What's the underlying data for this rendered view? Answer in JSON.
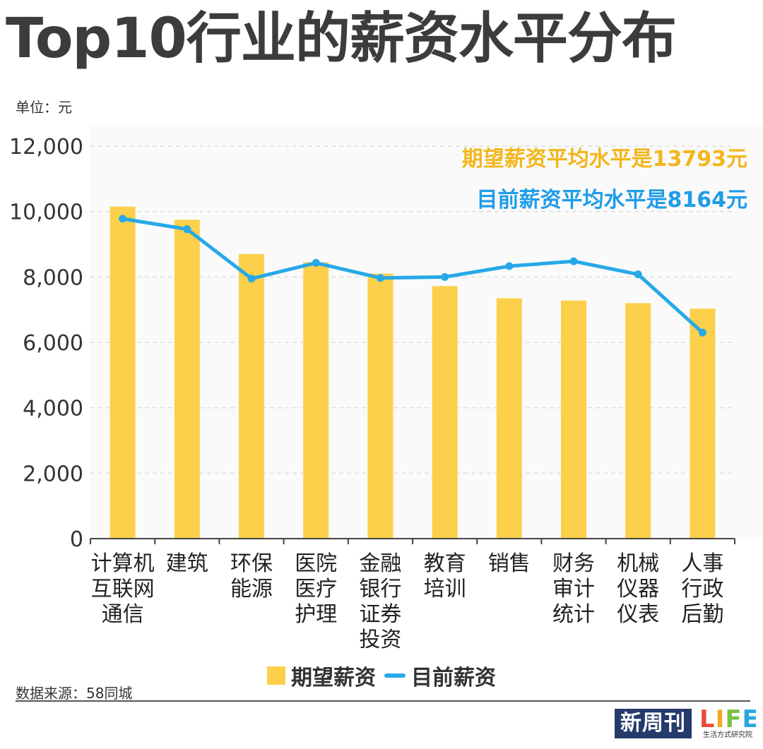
{
  "title": "Top10行业的薪资水平分布",
  "unit_label": "单位：元",
  "annotations": {
    "expected_avg": "期望薪资平均水平是13793元",
    "current_avg": "目前薪资平均水平是8164元"
  },
  "legend": {
    "bar_label": "期望薪资",
    "line_label": "目前薪资"
  },
  "source": "数据来源：58同城",
  "logos": {
    "publication": "新周刊",
    "life_word": "LIFE",
    "life_sub": "生活方式研究院"
  },
  "colors": {
    "bar": "#fcd04b",
    "line": "#27a9e8",
    "expected_text": "#f3b61c",
    "current_text": "#1f9ce8"
  },
  "chart_data": {
    "type": "bar",
    "categories": [
      [
        "计算机",
        "互联网",
        "通信"
      ],
      [
        "建筑"
      ],
      [
        "环保",
        "能源"
      ],
      [
        "医院",
        "医疗",
        "护理"
      ],
      [
        "金融",
        "银行",
        "证券",
        "投资"
      ],
      [
        "教育",
        "培训"
      ],
      [
        "销售"
      ],
      [
        "财务",
        "审计",
        "统计"
      ],
      [
        "机械",
        "仪器",
        "仪表"
      ],
      [
        "人事",
        "行政",
        "后勤"
      ]
    ],
    "series": [
      {
        "name": "期望薪资",
        "type": "bar",
        "values": [
          10150,
          9750,
          8700,
          8450,
          8100,
          7720,
          7350,
          7280,
          7200,
          7030
        ]
      },
      {
        "name": "目前薪资",
        "type": "line",
        "values": [
          9780,
          9460,
          7950,
          8430,
          7970,
          8000,
          8330,
          8480,
          8080,
          6300
        ]
      }
    ],
    "yticks": [
      "0",
      "2,000",
      "4,000",
      "6,000",
      "8,000",
      "10,000",
      "12,000"
    ],
    "ylim": [
      0,
      12000
    ],
    "grid": true,
    "legend_position": "bottom"
  }
}
